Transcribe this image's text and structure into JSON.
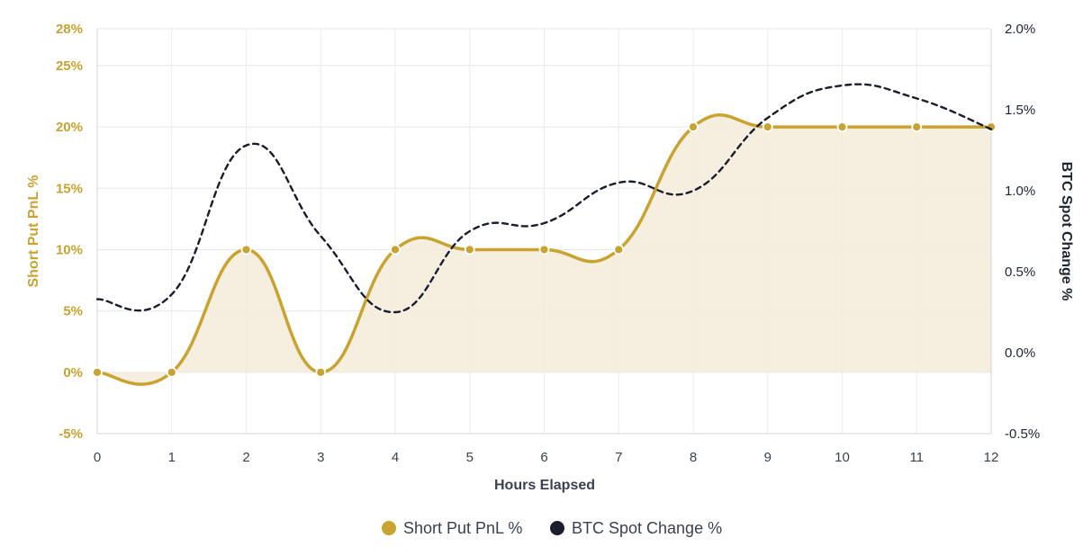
{
  "chart_data": {
    "type": "line",
    "x": [
      0,
      1,
      2,
      3,
      4,
      5,
      6,
      7,
      8,
      9,
      10,
      11,
      12
    ],
    "xlabel": "Hours Elapsed",
    "xlim": [
      0,
      12
    ],
    "series": [
      {
        "name": "Short Put PnL %",
        "axis": "left",
        "values": [
          0,
          0,
          10,
          0,
          10,
          10,
          10,
          10,
          20,
          20,
          20,
          20,
          20
        ],
        "color": "#c9a22f",
        "fill_color": "#f5ecda",
        "filled": true,
        "markers": true
      },
      {
        "name": "BTC Spot Change %",
        "axis": "right",
        "values": [
          0.33,
          0.36,
          1.28,
          0.72,
          0.25,
          0.75,
          0.8,
          1.05,
          1.0,
          1.45,
          1.65,
          1.57,
          1.38
        ],
        "color": "#1a1d2e",
        "dashed": true,
        "markers": false
      }
    ],
    "y_left": {
      "label": "Short Put PnL %",
      "ylim": [
        -5,
        28
      ],
      "ticks": [
        "-5%",
        "0%",
        "5%",
        "10%",
        "15%",
        "20%",
        "25%",
        "28%"
      ],
      "tick_values": [
        -5,
        0,
        5,
        10,
        15,
        20,
        25,
        28
      ],
      "color": "#c9a22f"
    },
    "y_right": {
      "label": "BTC Spot Change %",
      "ylim": [
        -0.5,
        2.0
      ],
      "ticks": [
        "-0.5%",
        "0.0%",
        "0.5%",
        "1.0%",
        "1.5%",
        "2.0%"
      ],
      "tick_values": [
        -0.5,
        0,
        0.5,
        1.0,
        1.5,
        2.0
      ],
      "color": "#1a1d2e"
    },
    "x_ticks": [
      "0",
      "1",
      "2",
      "3",
      "4",
      "5",
      "6",
      "7",
      "8",
      "9",
      "10",
      "11",
      "12"
    ],
    "grid": true,
    "legend": {
      "placement": "bottom-center",
      "items": [
        "Short Put PnL %",
        "BTC Spot Change %"
      ]
    }
  }
}
